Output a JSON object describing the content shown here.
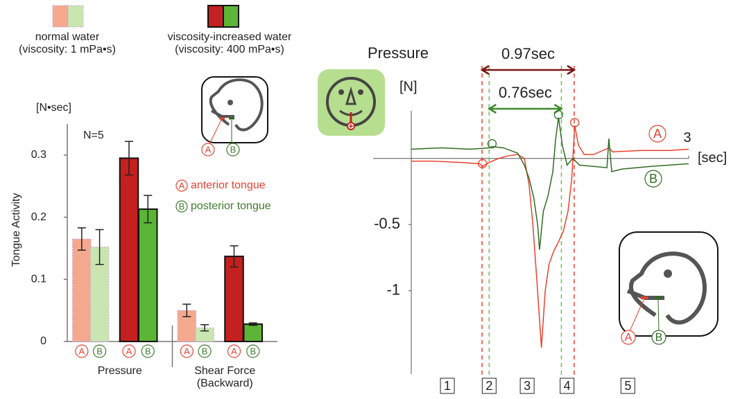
{
  "chart_data": [
    {
      "type": "bar",
      "y_label": "Tongue Activity",
      "y_unit": "[N•sec]",
      "annotation": "N=5",
      "categories": [
        "Pressure",
        "Shear Force (Backward)"
      ],
      "conditions": [
        {
          "name": "normal water",
          "detail": "(viscosity: 1 mPa•s)",
          "colors": [
            "#f4a98f",
            "#c9e6b1"
          ]
        },
        {
          "name": "viscosity-increased water",
          "detail": "(viscosity: 400 mPa•s)",
          "colors": [
            "#c3201f",
            "#5cb536"
          ]
        }
      ],
      "parts": [
        {
          "marker": "A",
          "name": "anterior tongue",
          "color": "#e8402f"
        },
        {
          "marker": "B",
          "name": "posterior tongue",
          "color": "#3d7a2b"
        }
      ],
      "series": [
        {
          "condition": 0,
          "part": 0,
          "color": "#f4a98f",
          "values": [
            0.165,
            0.05
          ],
          "errors": [
            0.018,
            0.01
          ]
        },
        {
          "condition": 0,
          "part": 1,
          "color": "#c9e6b1",
          "values": [
            0.152,
            0.022
          ],
          "errors": [
            0.028,
            0.005
          ]
        },
        {
          "condition": 1,
          "part": 0,
          "color": "#c3201f",
          "values": [
            0.295,
            0.137
          ],
          "errors": [
            0.027,
            0.017
          ]
        },
        {
          "condition": 1,
          "part": 1,
          "color": "#5cb536",
          "values": [
            0.213,
            0.028
          ],
          "errors": [
            0.022,
            0.002
          ]
        }
      ],
      "ylim": [
        0,
        0.35
      ],
      "yticks": [
        0,
        0.1,
        0.2,
        0.3
      ]
    },
    {
      "type": "line",
      "title": "Pressure",
      "y_unit": "[N]",
      "x_unit": "[sec]",
      "series": [
        {
          "name": "A",
          "color": "#e8402f",
          "x": [
            0.08,
            0.3,
            0.6,
            0.8,
            0.83,
            0.9,
            1.0,
            1.1,
            1.2,
            1.27,
            1.32,
            1.36,
            1.4,
            1.45,
            1.49,
            1.53,
            1.58,
            1.63,
            1.68,
            1.73,
            1.77,
            1.8,
            1.84,
            1.9,
            2.0,
            2.16,
            2.2,
            2.5,
            2.8,
            3.0
          ],
          "values": [
            -0.02,
            -0.02,
            -0.03,
            -0.04,
            -0.06,
            -0.03,
            0.0,
            0.02,
            0.03,
            0.0,
            -0.2,
            -0.5,
            -0.9,
            -1.43,
            -1.0,
            -0.8,
            -0.7,
            -0.63,
            -0.55,
            -0.4,
            -0.15,
            0.25,
            0.1,
            0.03,
            0.03,
            0.08,
            0.05,
            0.06,
            0.06,
            0.07
          ],
          "markers": [
            [
              0.83,
              -0.06
            ],
            [
              1.8,
              0.25
            ]
          ]
        },
        {
          "name": "B",
          "color": "#2f6b22",
          "x": [
            0.08,
            0.4,
            0.7,
            0.9,
            0.93,
            1.05,
            1.2,
            1.27,
            1.32,
            1.37,
            1.41,
            1.43,
            1.47,
            1.52,
            1.57,
            1.6,
            1.63,
            1.67,
            1.72,
            1.78,
            1.85,
            2.0,
            2.14,
            2.16,
            2.19,
            2.3,
            2.6,
            3.0
          ],
          "values": [
            0.07,
            0.08,
            0.07,
            0.08,
            0.09,
            0.08,
            0.04,
            -0.05,
            -0.15,
            -0.3,
            -0.5,
            -0.69,
            -0.4,
            -0.28,
            -0.1,
            0.15,
            0.31,
            0.1,
            -0.05,
            0.0,
            -0.05,
            -0.06,
            -0.07,
            0.15,
            -0.1,
            -0.08,
            -0.06,
            -0.04
          ],
          "markers": [
            [
              0.93,
              0.09
            ],
            [
              1.63,
              0.31
            ]
          ]
        }
      ],
      "vlines": [
        {
          "x": 0.825,
          "color": "#e8402f"
        },
        {
          "x": 1.795,
          "color": "#e8402f"
        },
        {
          "x": 0.9,
          "color": "#6cc04a"
        },
        {
          "x": 1.66,
          "color": "#6cc04a"
        }
      ],
      "spans": [
        {
          "label": "0.97sec",
          "from": 0.825,
          "to": 1.795,
          "color": "#7a1414"
        },
        {
          "label": "0.76sec",
          "from": 0.9,
          "to": 1.66,
          "color": "#3d8a2b"
        }
      ],
      "phases": [
        {
          "label": "1",
          "x": 0.46
        },
        {
          "label": "2",
          "x": 0.9
        },
        {
          "label": "3",
          "x": 1.3
        },
        {
          "label": "4",
          "x": 1.72
        },
        {
          "label": "5",
          "x": 2.36
        }
      ],
      "xlim": [
        0.08,
        3
      ],
      "xticks": [
        3
      ],
      "ylim": [
        -1.63,
        0.36
      ],
      "yticks": [
        -0.5,
        -1
      ]
    }
  ]
}
